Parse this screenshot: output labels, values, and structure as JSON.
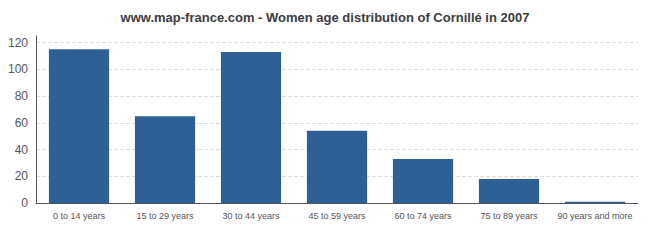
{
  "chart_data": {
    "type": "bar",
    "title": "www.map-france.com - Women age distribution of Cornillé in 2007",
    "categories": [
      "0 to 14 years",
      "15 to 29 years",
      "30 to 44 years",
      "45 to 59 years",
      "60 to 74 years",
      "75 to 89 years",
      "90 years and more"
    ],
    "values": [
      115,
      65,
      113,
      54,
      33,
      18,
      1
    ],
    "color": "#2e6096",
    "ylim": [
      0,
      125
    ],
    "yticks": [
      0,
      20,
      40,
      60,
      80,
      100,
      120
    ],
    "grid": true
  }
}
